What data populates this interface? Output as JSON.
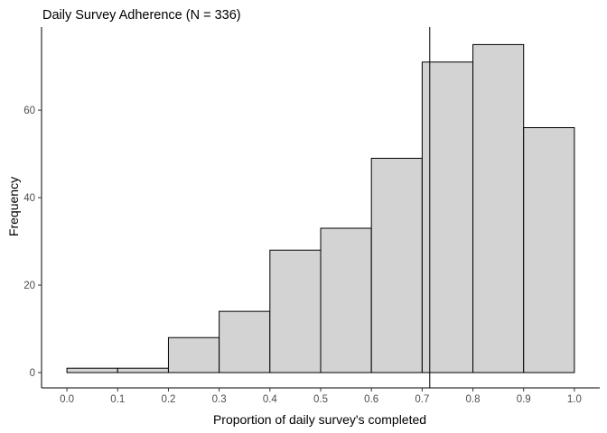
{
  "chart_data": {
    "type": "bar",
    "title": "Daily Survey Adherence (N = 336)",
    "xlabel": "Proportion of daily survey's completed",
    "ylabel": "Frequency",
    "bins": [
      {
        "x0": 0.0,
        "x1": 0.1,
        "count": 1
      },
      {
        "x0": 0.1,
        "x1": 0.2,
        "count": 1
      },
      {
        "x0": 0.2,
        "x1": 0.3,
        "count": 8
      },
      {
        "x0": 0.3,
        "x1": 0.4,
        "count": 14
      },
      {
        "x0": 0.4,
        "x1": 0.5,
        "count": 28
      },
      {
        "x0": 0.5,
        "x1": 0.6,
        "count": 33
      },
      {
        "x0": 0.6,
        "x1": 0.7,
        "count": 49
      },
      {
        "x0": 0.7,
        "x1": 0.8,
        "count": 71
      },
      {
        "x0": 0.8,
        "x1": 0.9,
        "count": 75
      },
      {
        "x0": 0.9,
        "x1": 1.0,
        "count": 56
      }
    ],
    "reference_line_x": 0.715,
    "xlim": [
      -0.05,
      1.05
    ],
    "ylim": [
      -3.5,
      79
    ],
    "x_ticks": [
      {
        "value": 0.0,
        "label": "0.0"
      },
      {
        "value": 0.1,
        "label": "0.1"
      },
      {
        "value": 0.2,
        "label": "0.2"
      },
      {
        "value": 0.3,
        "label": "0.3"
      },
      {
        "value": 0.4,
        "label": "0.4"
      },
      {
        "value": 0.5,
        "label": "0.5"
      },
      {
        "value": 0.6,
        "label": "0.6"
      },
      {
        "value": 0.7,
        "label": "0.7"
      },
      {
        "value": 0.8,
        "label": "0.8"
      },
      {
        "value": 0.9,
        "label": "0.9"
      },
      {
        "value": 1.0,
        "label": "1.0"
      }
    ],
    "y_ticks": [
      {
        "value": 0,
        "label": "0"
      },
      {
        "value": 20,
        "label": "20"
      },
      {
        "value": 40,
        "label": "40"
      },
      {
        "value": 60,
        "label": "60"
      }
    ],
    "grid": false,
    "bar_fill": "#d3d3d3",
    "bar_stroke": "#000000"
  }
}
